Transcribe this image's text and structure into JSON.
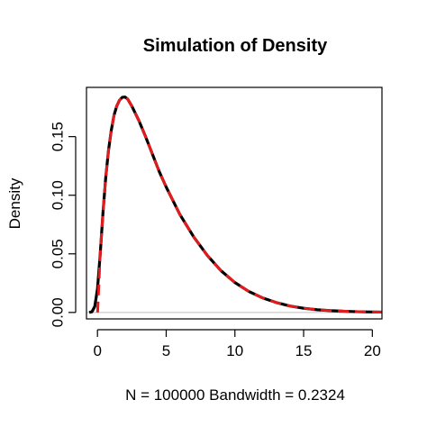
{
  "chart_data": {
    "type": "line",
    "title": "Simulation of Density",
    "xlabel": "N = 100000   Bandwidth = 0.2324",
    "ylabel": "Density",
    "xlim": [
      -0.8,
      20.7
    ],
    "ylim": [
      -0.0055,
      0.192
    ],
    "x_ticks": [
      0,
      5,
      10,
      15,
      20
    ],
    "x_tick_labels": [
      "0",
      "5",
      "10",
      "15",
      "20"
    ],
    "y_ticks": [
      0.0,
      0.05,
      0.1,
      0.15
    ],
    "y_tick_labels": [
      "0.00",
      "0.05",
      "0.10",
      "0.15"
    ],
    "grid": false,
    "baseline": 0,
    "series": [
      {
        "color": "#000000",
        "style": "solid",
        "x": [
          -0.6,
          -0.4,
          -0.2,
          0,
          0.2,
          0.4,
          0.6,
          0.8,
          1.0,
          1.2,
          1.4,
          1.6,
          1.8,
          2.0,
          2.2,
          2.5,
          3.0,
          3.5,
          4.0,
          4.5,
          5.0,
          6.0,
          7.0,
          8.0,
          9.0,
          10.0,
          11.0,
          12.0,
          13.0,
          14.0,
          15.0,
          16.0,
          17.0,
          18.0,
          19.0,
          20.0,
          20.7
        ],
        "y": [
          0.0,
          0.0006,
          0.005,
          0.02,
          0.05,
          0.085,
          0.115,
          0.138,
          0.155,
          0.168,
          0.176,
          0.181,
          0.1835,
          0.1838,
          0.182,
          0.176,
          0.164,
          0.15,
          0.135,
          0.12,
          0.107,
          0.0835,
          0.0645,
          0.0485,
          0.0355,
          0.0255,
          0.018,
          0.0125,
          0.0085,
          0.0055,
          0.0036,
          0.0023,
          0.0015,
          0.001,
          0.0006,
          0.0004,
          0.0003
        ]
      },
      {
        "color": "#e41a1c",
        "style": "dashed",
        "x": [
          0.01,
          0.2,
          0.4,
          0.6,
          0.8,
          1.0,
          1.2,
          1.4,
          1.6,
          1.8,
          2.0,
          2.2,
          2.5,
          3.0,
          3.5,
          4.0,
          4.5,
          5.0,
          6.0,
          7.0,
          8.0,
          9.0,
          10.0,
          11.0,
          12.0,
          13.0,
          14.0,
          15.0,
          16.0,
          17.0,
          18.0,
          19.0,
          20.0,
          20.7
        ],
        "y": [
          0.0,
          0.05,
          0.085,
          0.115,
          0.138,
          0.155,
          0.168,
          0.176,
          0.181,
          0.1835,
          0.1838,
          0.182,
          0.176,
          0.164,
          0.15,
          0.135,
          0.12,
          0.107,
          0.0835,
          0.0645,
          0.0485,
          0.0355,
          0.0255,
          0.018,
          0.0125,
          0.0085,
          0.0055,
          0.0036,
          0.0023,
          0.0015,
          0.001,
          0.0006,
          0.0004,
          0.0003
        ]
      }
    ]
  }
}
